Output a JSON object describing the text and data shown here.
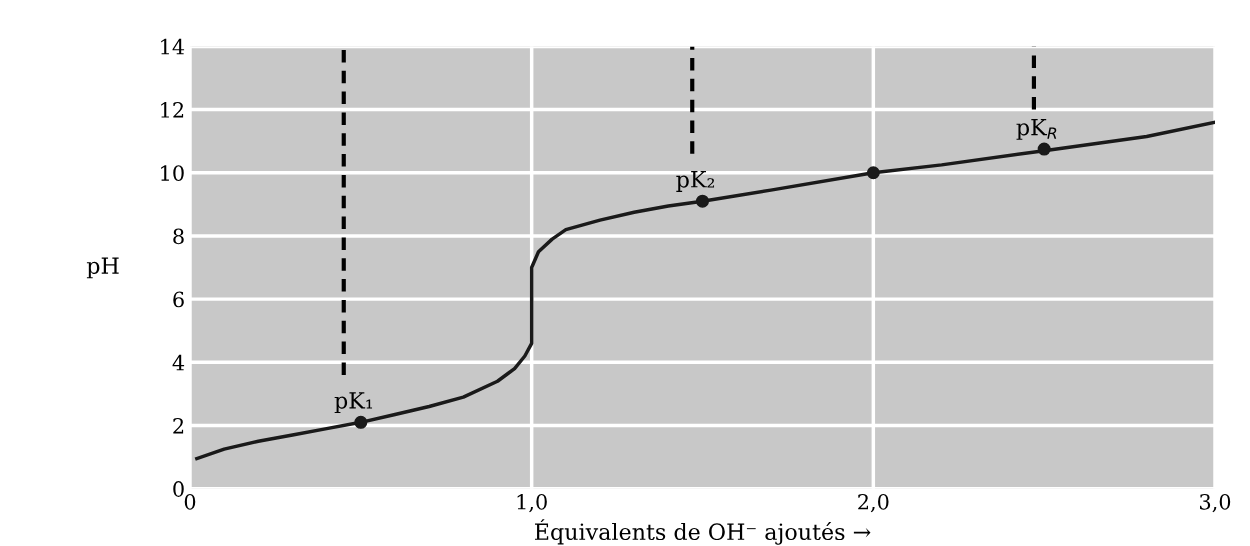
{
  "chart_data": {
    "type": "line",
    "xlabel": "Équivalents de OH⁻ ajoutés →",
    "ylabel": "pH",
    "xlim": [
      0,
      3.0
    ],
    "ylim": [
      0,
      14
    ],
    "xticks": [
      0,
      {
        "value": 1.0,
        "label": "1,0"
      },
      {
        "value": 2.0,
        "label": "2,0"
      },
      {
        "value": 3.0,
        "label": "3,0"
      }
    ],
    "yticks": [
      0,
      2,
      4,
      6,
      8,
      10,
      12,
      14
    ],
    "grid": true,
    "marker": "none",
    "line_style": "solid",
    "series": [
      {
        "color": "#1a1a1a",
        "x": [
          0.02,
          0.1,
          0.2,
          0.3,
          0.4,
          0.5,
          0.6,
          0.7,
          0.8,
          0.9,
          0.95,
          0.98,
          1.0,
          1.0,
          1.02,
          1.06,
          1.1,
          1.2,
          1.3,
          1.4,
          1.5,
          1.7,
          2.0,
          2.2,
          2.5,
          2.8,
          3.0
        ],
        "values": [
          0.95,
          1.25,
          1.5,
          1.7,
          1.9,
          2.1,
          2.35,
          2.6,
          2.9,
          3.4,
          3.8,
          4.2,
          4.6,
          7.0,
          7.5,
          7.9,
          8.2,
          8.5,
          8.75,
          8.95,
          9.1,
          9.45,
          10.0,
          10.25,
          10.7,
          11.15,
          11.6
        ]
      },
      {
        "type": "scatter",
        "marker": "circle",
        "color": "#1a1a1a",
        "x": [
          0.5,
          1.5,
          2.0,
          2.5
        ],
        "values": [
          2.1,
          9.1,
          10.0,
          10.75
        ]
      },
      {
        "color": "#000000",
        "line_style": "dashed",
        "x": [
          0.45,
          0.45
        ],
        "values": [
          3.6,
          14
        ]
      },
      {
        "color": "#000000",
        "line_style": "dashed",
        "x": [
          1.47,
          1.47
        ],
        "values": [
          10.6,
          14
        ]
      },
      {
        "color": "#000000",
        "line_style": "dashed",
        "x": [
          2.47,
          2.47
        ],
        "values": [
          12.0,
          14
        ]
      }
    ],
    "annotations": [
      {
        "text": "pK₁",
        "x": 0.5,
        "y": 2.1
      },
      {
        "text": "pK₂",
        "x": 1.5,
        "y": 9.1
      },
      {
        "text": "pK$_{R}$",
        "x": 2.5,
        "y": 10.75
      }
    ]
  }
}
